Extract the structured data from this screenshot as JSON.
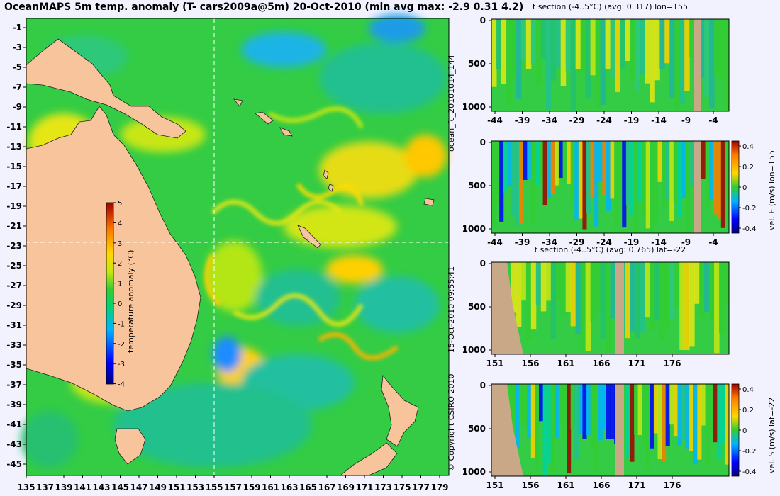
{
  "title": "OceanMAPS 5m temp. anomaly (T- cars2009a@5m) 20-Oct-2010 (min avg max: -2.9 0.31 4.2)",
  "map": {
    "lat_ticks": [
      "-1",
      "-3",
      "-5",
      "-7",
      "-9",
      "-11",
      "-13",
      "-15",
      "-17",
      "-19",
      "-21",
      "-23",
      "-25",
      "-27",
      "-29",
      "-31",
      "-33",
      "-35",
      "-37",
      "-39",
      "-41",
      "-43",
      "-45"
    ],
    "lon_ticks": [
      "135",
      "137",
      "139",
      "141",
      "143",
      "145",
      "147",
      "149",
      "151",
      "153",
      "155",
      "157",
      "159",
      "161",
      "163",
      "165",
      "167",
      "169",
      "171",
      "173",
      "175",
      "177",
      "179"
    ],
    "colorbar": {
      "label": "temperature anomaly (°C)",
      "ticks": [
        "5",
        "4",
        "3",
        "2",
        "1",
        "0",
        "-1",
        "-2",
        "-3",
        "-4"
      ]
    },
    "crosshair": {
      "lon": 155,
      "lat": -22
    }
  },
  "side_labels": {
    "run": "ocean_fc_20101014_144",
    "issued": "15-Oct-2010 09:55:41",
    "copyright": "© Copyright CSIRO 2010"
  },
  "colors": {
    "land": "#f7c49b",
    "section_land": "#c8a886",
    "ocean_base": "#33cc44",
    "crosshair": "#ffffff"
  },
  "panels": [
    {
      "title": "t section (-4..5°C) (avg: 0.317) lon=155",
      "y_ticks": [
        "0",
        "500",
        "1000"
      ],
      "x_ticks": [
        "-44",
        "-39",
        "-34",
        "-29",
        "-24",
        "-19",
        "-14",
        "-9",
        "-4"
      ],
      "cbar_label": "",
      "cbar_ticks": []
    },
    {
      "title": "",
      "y_ticks": [
        "0",
        "500",
        "1000"
      ],
      "x_ticks": [
        "-44",
        "-39",
        "-34",
        "-29",
        "-24",
        "-19",
        "-14",
        "-9",
        "-4"
      ],
      "cbar_label": "vel. E (m/s) lon=155",
      "cbar_ticks": [
        "0.4",
        "0.2",
        "0",
        "-0.2",
        "-0.4"
      ]
    },
    {
      "title": "t section (-4..5°C) (avg: 0.765) lat=-22",
      "y_ticks": [
        "0",
        "500",
        "1000"
      ],
      "x_ticks": [
        "151",
        "156",
        "161",
        "166",
        "171",
        "176"
      ],
      "cbar_label": "",
      "cbar_ticks": []
    },
    {
      "title": "",
      "y_ticks": [
        "0",
        "500",
        "1000"
      ],
      "x_ticks": [
        "151",
        "156",
        "161",
        "166",
        "171",
        "176"
      ],
      "cbar_label": "vel. S (m/s) lat=-22",
      "cbar_ticks": [
        "0.4",
        "0.2",
        "0",
        "-0.2",
        "-0.4"
      ]
    }
  ]
}
